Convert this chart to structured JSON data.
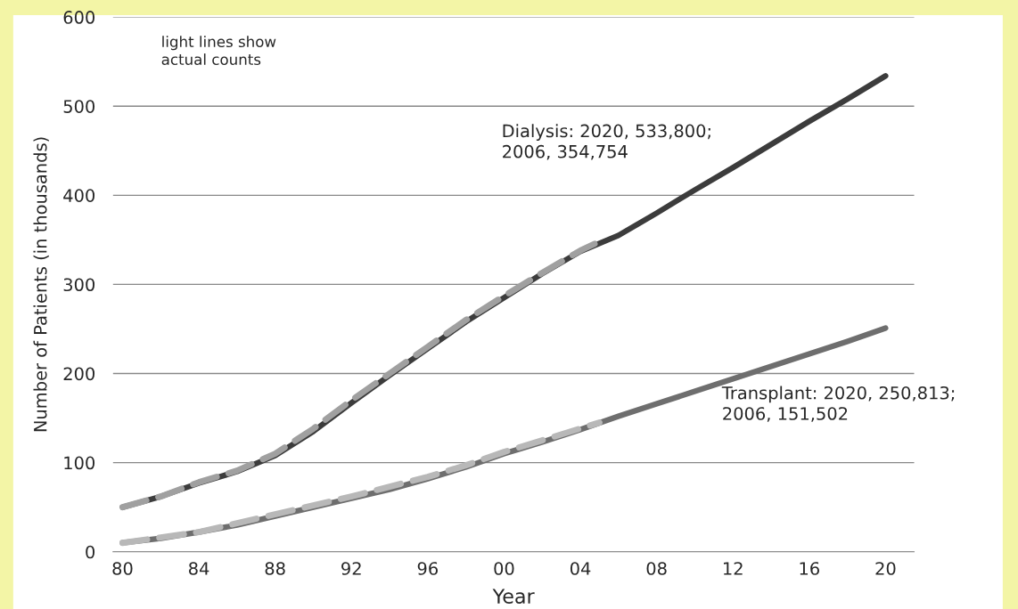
{
  "chart_data": {
    "type": "line",
    "xlabel": "Year",
    "ylabel": "Number of Patients (in thousands)",
    "x": [
      1980,
      1982,
      1984,
      1986,
      1988,
      1990,
      1992,
      1994,
      1996,
      1998,
      2000,
      2002,
      2004,
      2006,
      2008,
      2010,
      2012,
      2014,
      2016,
      2018,
      2020
    ],
    "series": [
      {
        "color": "#3c3c3c",
        "line_style": "solid",
        "values": [
          50,
          62,
          77,
          90,
          108,
          135,
          167,
          198,
          228,
          258,
          285,
          312,
          337,
          355,
          380,
          406,
          431,
          457,
          483,
          508,
          534
        ]
      },
      {
        "color": "#6e6e6e",
        "line_style": "solid",
        "values": [
          10,
          15,
          22,
          30,
          40,
          50,
          60,
          70,
          82,
          95,
          110,
          123,
          137,
          152,
          166,
          180,
          194,
          208,
          222,
          236,
          251
        ]
      },
      {
        "color": "#a0a0a0",
        "line_style": "dashed",
        "x": [
          1980,
          1982,
          1984,
          1986,
          1988,
          1990,
          1992,
          1994,
          1996,
          1998,
          2000,
          2002,
          2004,
          2005
        ],
        "values": [
          50,
          62,
          78,
          91,
          110,
          138,
          170,
          200,
          230,
          260,
          287,
          313,
          338,
          348
        ]
      },
      {
        "color": "#b8b8b8",
        "line_style": "dashed",
        "x": [
          1980,
          1984,
          1988,
          1992,
          1996,
          1998,
          2000,
          2002,
          2005
        ],
        "values": [
          10,
          22,
          42,
          62,
          84,
          97,
          112,
          125,
          145
        ]
      }
    ],
    "xlim": [
      1979.5,
      2021.5
    ],
    "xticks": [
      {
        "value": 1980,
        "label": "80"
      },
      {
        "value": 1984,
        "label": "84"
      },
      {
        "value": 1988,
        "label": "88"
      },
      {
        "value": 1992,
        "label": "92"
      },
      {
        "value": 1996,
        "label": "96"
      },
      {
        "value": 2000,
        "label": "00"
      },
      {
        "value": 2004,
        "label": "04"
      },
      {
        "value": 2008,
        "label": "08"
      },
      {
        "value": 2012,
        "label": "12"
      },
      {
        "value": 2016,
        "label": "16"
      },
      {
        "value": 2020,
        "label": "20"
      }
    ],
    "ylim": [
      0,
      600
    ],
    "yticks": [
      0,
      100,
      200,
      300,
      400,
      500,
      600
    ],
    "grid": "y",
    "legend": false,
    "marker": "none",
    "annotations": [
      "light lines show\nactual counts",
      "Dialysis: 2020, 533,800;\n2006, 354,754",
      "Transplant: 2020, 250,813;\n2006, 151,502"
    ]
  }
}
